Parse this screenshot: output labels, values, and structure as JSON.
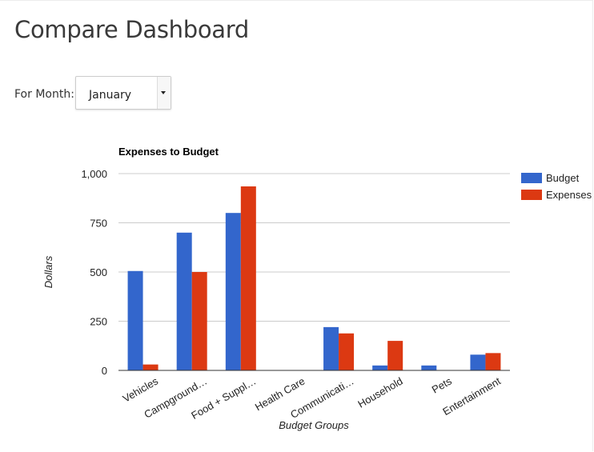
{
  "page": {
    "title": "Compare Dashboard",
    "month_label": "For Month:",
    "month_selected": "January"
  },
  "chart_data": {
    "type": "bar",
    "title": "Expenses to Budget",
    "xlabel": "Budget Groups",
    "ylabel": "Dollars",
    "ylim": [
      0,
      1000
    ],
    "yticks": [
      0,
      250,
      500,
      750,
      1000
    ],
    "ytick_labels": [
      "0",
      "250",
      "500",
      "750",
      "1,000"
    ],
    "grid": true,
    "legend_position": "right",
    "categories": [
      "Vehicles",
      "Campground…",
      "Food + Suppl…",
      "Health Care",
      "Communicati…",
      "Household",
      "Pets",
      "Entertainment"
    ],
    "series": [
      {
        "name": "Budget",
        "color": "#3366cc",
        "values": [
          505,
          700,
          800,
          0,
          220,
          25,
          25,
          80
        ]
      },
      {
        "name": "Expenses",
        "color": "#dc3912",
        "values": [
          30,
          500,
          935,
          0,
          188,
          150,
          0,
          88
        ]
      }
    ]
  }
}
